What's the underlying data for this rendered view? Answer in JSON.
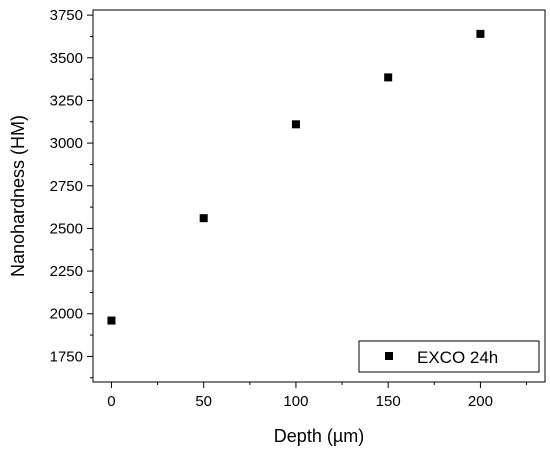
{
  "chart_data": {
    "type": "scatter",
    "xlabel": "Depth (µm)",
    "ylabel": "Nanohardness (HM)",
    "xlim": [
      -10,
      235
    ],
    "ylim": [
      1600,
      3780
    ],
    "x_ticks": [
      0,
      50,
      100,
      150,
      200
    ],
    "y_ticks": [
      1750,
      2000,
      2250,
      2500,
      2750,
      3000,
      3250,
      3500,
      3750
    ],
    "grid": false,
    "legend_position": "bottom-right",
    "series": [
      {
        "name": "EXCO 24h",
        "color": "#000000",
        "marker": "square",
        "x": [
          0,
          50,
          100,
          150,
          200
        ],
        "y": [
          1960,
          2560,
          3110,
          3385,
          3640
        ]
      }
    ]
  }
}
